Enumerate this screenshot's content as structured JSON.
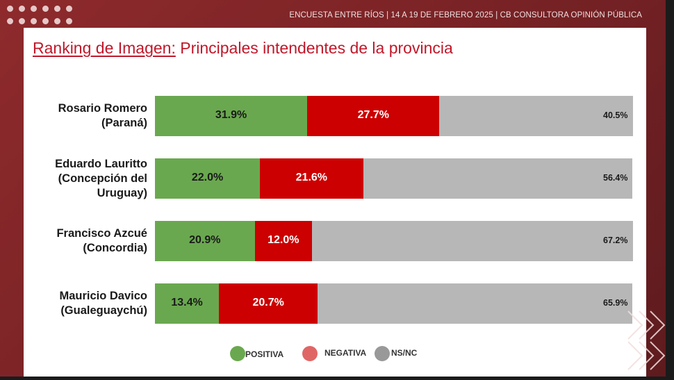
{
  "header": {
    "text": "ENCUESTA ENTRE RÍOS   | 14 A 19 DE FEBRERO 2025 | CB CONSULTORA OPINIÓN PÚBLICA"
  },
  "title": {
    "part1": "Ranking de Imagen:",
    "part2": " Principales intendentes de la provincia"
  },
  "colors": {
    "positiva": "#6aa84f",
    "negativa": "#cc0000",
    "nsnc": "#b7b7b7",
    "legend_negativa": "#e06666",
    "legend_nsnc": "#999999",
    "title": "#c0182a"
  },
  "legend": {
    "positiva": "POSITIVA",
    "negativa": "NEGATIVA",
    "nsnc": "NS/NC"
  },
  "chart_data": {
    "type": "bar",
    "stacked": true,
    "orientation": "horizontal",
    "title": "Ranking de Imagen: Principales intendentes de la provincia",
    "categories": [
      [
        "Rosario Romero",
        "(Paraná)"
      ],
      [
        "Eduardo Lauritto",
        "(Concepción del",
        "Uruguay)"
      ],
      [
        "Francisco Azcué",
        "(Concordia)"
      ],
      [
        "Mauricio Davico",
        "(Gualeguaychú)"
      ]
    ],
    "series": [
      {
        "name": "POSITIVA",
        "values": [
          31.9,
          22.0,
          20.9,
          13.4
        ],
        "labels": [
          "31.9%",
          "22.0%",
          "20.9%",
          "13.4%"
        ]
      },
      {
        "name": "NEGATIVA",
        "values": [
          27.7,
          21.6,
          12.0,
          20.7
        ],
        "labels": [
          "27.7%",
          "21.6%",
          "12.0%",
          "20.7%"
        ]
      },
      {
        "name": "NS/NC",
        "values": [
          40.5,
          56.4,
          67.2,
          65.9
        ],
        "labels": [
          "40.5%",
          "56.4%",
          "67.2%",
          "65.9%"
        ]
      }
    ],
    "xlim": [
      0,
      100
    ],
    "legend_position": "bottom",
    "grid": false
  }
}
